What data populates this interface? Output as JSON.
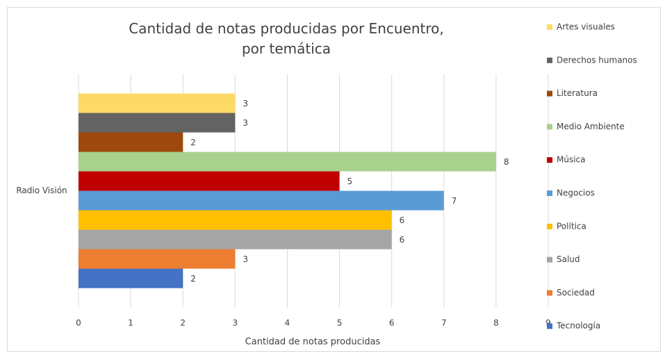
{
  "chart_data": {
    "type": "bar",
    "orientation": "horizontal",
    "title": "Cantidad de notas producidas por Encuentro, por temática",
    "x_label": "Cantidad de notas producidas",
    "categories": [
      "Radio Visión"
    ],
    "series": [
      {
        "name": "Artes visuales",
        "color": "#FFD966",
        "values": [
          3
        ]
      },
      {
        "name": "Derechos humanos",
        "color": "#636363",
        "values": [
          3
        ]
      },
      {
        "name": "Literatura",
        "color": "#9E480E",
        "values": [
          2
        ]
      },
      {
        "name": "Medio Ambiente",
        "color": "#A9D18E",
        "values": [
          8
        ]
      },
      {
        "name": "Música",
        "color": "#C00000",
        "values": [
          5
        ]
      },
      {
        "name": "Negocios",
        "color": "#5B9BD5",
        "values": [
          7
        ]
      },
      {
        "name": "Política",
        "color": "#FFC000",
        "values": [
          6
        ]
      },
      {
        "name": "Salud",
        "color": "#A5A5A5",
        "values": [
          6
        ]
      },
      {
        "name": "Sociedad",
        "color": "#ED7D31",
        "values": [
          3
        ]
      },
      {
        "name": "Tecnología",
        "color": "#4472C4",
        "values": [
          2
        ]
      }
    ],
    "xlim": [
      0,
      9
    ],
    "xticks": [
      0,
      1,
      2,
      3,
      4,
      5,
      6,
      7,
      8,
      9
    ],
    "grid": true,
    "legend": "right"
  }
}
